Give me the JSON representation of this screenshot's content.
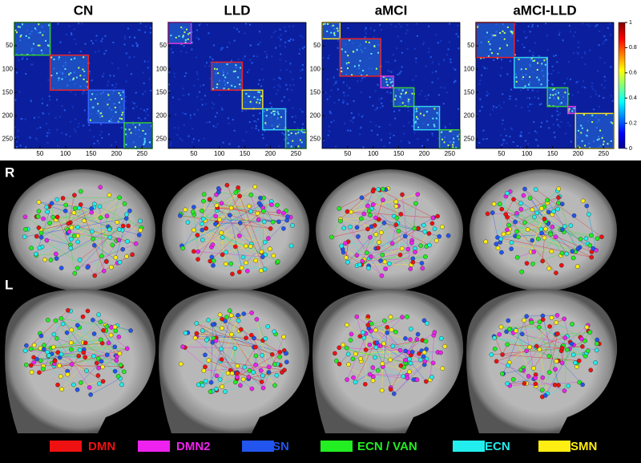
{
  "panels": [
    {
      "title": "CN",
      "modules": [
        {
          "color": "#33cc33",
          "range": [
            0,
            70
          ]
        },
        {
          "color": "#ee2222",
          "range": [
            70,
            145
          ]
        },
        {
          "color": "#3366ff",
          "range": [
            145,
            215
          ]
        },
        {
          "color": "#33cc33",
          "range": [
            215,
            270
          ]
        }
      ]
    },
    {
      "title": "LLD",
      "modules": [
        {
          "color": "#dd33dd",
          "range": [
            0,
            45
          ]
        },
        {
          "color": "#ee2222",
          "range": [
            85,
            145
          ]
        },
        {
          "color": "#eedd22",
          "range": [
            145,
            185
          ]
        },
        {
          "color": "#33ccee",
          "range": [
            185,
            230
          ]
        },
        {
          "color": "#33cc33",
          "range": [
            230,
            270
          ]
        }
      ]
    },
    {
      "title": "aMCI",
      "modules": [
        {
          "color": "#eedd22",
          "range": [
            0,
            35
          ]
        },
        {
          "color": "#ee2222",
          "range": [
            35,
            115
          ]
        },
        {
          "color": "#dd33dd",
          "range": [
            115,
            140
          ]
        },
        {
          "color": "#33cc33",
          "range": [
            140,
            180
          ]
        },
        {
          "color": "#33ccee",
          "range": [
            180,
            230
          ]
        },
        {
          "color": "#33cc33",
          "range": [
            230,
            270
          ]
        }
      ]
    },
    {
      "title": "aMCI-LLD",
      "modules": [
        {
          "color": "#ee2222",
          "range": [
            0,
            75
          ]
        },
        {
          "color": "#33ccee",
          "range": [
            75,
            140
          ]
        },
        {
          "color": "#33cc33",
          "range": [
            140,
            180
          ]
        },
        {
          "color": "#dd33dd",
          "range": [
            180,
            195
          ]
        },
        {
          "color": "#eedd22",
          "range": [
            195,
            270
          ]
        }
      ]
    }
  ],
  "axis": {
    "lim": [
      0,
      270
    ],
    "ticks": [
      50,
      100,
      150,
      200,
      250
    ]
  },
  "colorbar": {
    "lim": [
      0,
      1
    ],
    "ticks": [
      0,
      0.2,
      0.4,
      0.6,
      0.8,
      1
    ]
  },
  "views": [
    "R",
    "L"
  ],
  "legend": [
    {
      "label": "DMN",
      "color": "#ee1111"
    },
    {
      "label": "DMN2",
      "color": "#ee22ee"
    },
    {
      "label": "SN",
      "color": "#2255ee"
    },
    {
      "label": "ECN / VAN",
      "color": "#22ee22"
    },
    {
      "label": "ECN",
      "color": "#22eeee"
    },
    {
      "label": "SMN",
      "color": "#ffee11"
    }
  ]
}
